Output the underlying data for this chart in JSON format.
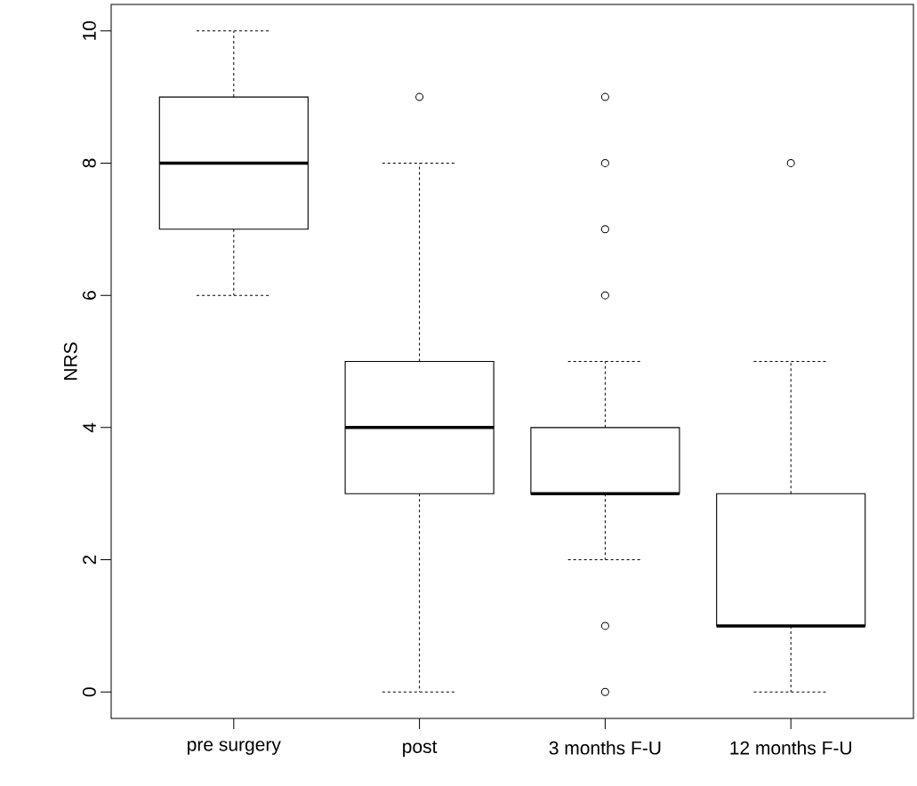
{
  "chart_data": {
    "type": "box",
    "ylabel": "NRS",
    "categories": [
      "pre surgery",
      "post",
      "3 months F-U",
      "12 months F-U"
    ],
    "boxes": [
      {
        "low": 6,
        "q1": 7,
        "median": 8,
        "q3": 9,
        "high": 10
      },
      {
        "low": 0,
        "q1": 3,
        "median": 4,
        "q3": 5,
        "high": 8,
        "outliers": [
          9
        ]
      },
      {
        "low": 2,
        "q1": 3,
        "median": 3,
        "q3": 4,
        "high": 5,
        "outliers": [
          9,
          8,
          7,
          6,
          1,
          0
        ]
      },
      {
        "low": 0,
        "q1": 1,
        "median": 1,
        "q3": 3,
        "high": 5,
        "outliers": [
          8
        ]
      }
    ],
    "ylim": [
      -0.4,
      10.4
    ],
    "yticks": [
      0,
      2,
      4,
      6,
      8,
      10
    ],
    "grid": false
  }
}
